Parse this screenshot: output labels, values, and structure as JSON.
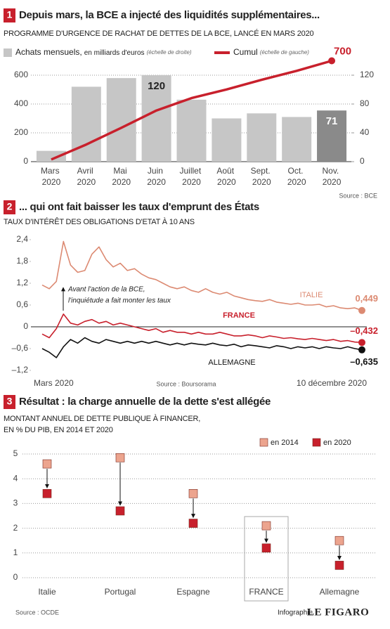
{
  "chart_data": [
    {
      "type": "bar",
      "number": "1",
      "title": "Depuis mars, la BCE a injecté des liquidités supplémentaires...",
      "subtitle": "PROGRAMME D'URGENCE DE RACHAT DE DETTES DE LA BCE, LANCÉ EN MARS 2020",
      "categories": [
        "Mars 2020",
        "Avril 2020",
        "Mai 2020",
        "Juin 2020",
        "Juillet 2020",
        "Août 2020",
        "Sept. 2020",
        "Oct. 2020",
        "Nov. 2020"
      ],
      "series": [
        {
          "name": "Achats mensuels,",
          "unit": "en milliards d'euros",
          "note": "(échelle de droite)",
          "type": "bar",
          "axis": "y2",
          "color": "#c6c6c6",
          "colors": [
            "#c6c6c6",
            "#c6c6c6",
            "#c6c6c6",
            "#c6c6c6",
            "#c6c6c6",
            "#c6c6c6",
            "#c6c6c6",
            "#c6c6c6",
            "#8a8a8a"
          ],
          "values": [
            15,
            104,
            116,
            120,
            86,
            60,
            67,
            62,
            71
          ],
          "value_labels": [
            null,
            null,
            null,
            "120",
            null,
            null,
            null,
            null,
            "71"
          ]
        },
        {
          "name": "Cumul",
          "note": "(échelle de gauche)",
          "type": "line",
          "axis": "y",
          "color": "#c8202c",
          "values": [
            15,
            119,
            235,
            355,
            441,
            501,
            568,
            630,
            700
          ],
          "value_labels": [
            null,
            null,
            null,
            null,
            null,
            null,
            null,
            null,
            "700"
          ]
        }
      ],
      "ylim": [
        0,
        600
      ],
      "yticks": [
        0,
        200,
        400,
        600
      ],
      "y2lim": [
        0,
        120
      ],
      "y2ticks": [
        0,
        40,
        80,
        120
      ],
      "grid": true,
      "source": "Source : BCE"
    },
    {
      "type": "line",
      "number": "2",
      "title": "... qui ont fait baisser les taux d'emprunt des États",
      "subtitle": "TAUX D'INTÉRÊT DES OBLIGATIONS D'ETAT À 10 ANS",
      "categories": [
        "Mars 2020",
        null,
        null,
        null,
        null,
        null,
        null,
        null,
        null,
        null,
        null,
        null,
        null,
        null,
        null,
        null,
        null,
        null,
        null,
        null,
        null,
        null,
        null,
        null,
        null,
        null,
        null,
        null,
        null,
        null,
        null,
        null,
        null,
        null,
        null,
        null,
        null,
        null,
        null,
        null,
        null,
        null,
        null,
        null,
        null,
        "10 décembre 2020"
      ],
      "series": [
        {
          "name": "ITALIE",
          "color": "#dc8a72",
          "values": [
            1.15,
            1.05,
            1.25,
            2.35,
            1.7,
            1.5,
            1.55,
            2.0,
            2.2,
            1.85,
            1.65,
            1.75,
            1.55,
            1.6,
            1.45,
            1.35,
            1.3,
            1.2,
            1.1,
            1.05,
            1.1,
            1.0,
            0.95,
            1.05,
            0.95,
            0.9,
            0.95,
            0.85,
            0.8,
            0.75,
            0.72,
            0.7,
            0.75,
            0.68,
            0.65,
            0.62,
            0.65,
            0.6,
            0.6,
            0.62,
            0.55,
            0.58,
            0.52,
            0.5,
            0.52,
            0.449
          ],
          "value_labels": [
            null,
            null,
            null,
            null,
            null,
            null,
            null,
            null,
            null,
            null,
            null,
            null,
            null,
            null,
            null,
            null,
            null,
            null,
            null,
            null,
            null,
            null,
            null,
            null,
            null,
            null,
            null,
            null,
            null,
            null,
            null,
            null,
            null,
            null,
            null,
            null,
            null,
            null,
            null,
            null,
            null,
            null,
            null,
            null,
            null,
            "0,449"
          ]
        },
        {
          "name": "FRANCE",
          "color": "#c8202c",
          "values": [
            -0.2,
            -0.3,
            -0.05,
            0.35,
            0.1,
            0.05,
            0.15,
            0.2,
            0.1,
            0.15,
            0.05,
            0.1,
            0.05,
            0,
            -0.05,
            -0.1,
            -0.05,
            -0.15,
            -0.1,
            -0.15,
            -0.15,
            -0.2,
            -0.15,
            -0.2,
            -0.2,
            -0.15,
            -0.2,
            -0.25,
            -0.25,
            -0.22,
            -0.25,
            -0.3,
            -0.25,
            -0.28,
            -0.32,
            -0.3,
            -0.33,
            -0.35,
            -0.32,
            -0.35,
            -0.38,
            -0.35,
            -0.4,
            -0.38,
            -0.42,
            -0.432
          ],
          "value_labels": [
            null,
            null,
            null,
            null,
            null,
            null,
            null,
            null,
            null,
            null,
            null,
            null,
            null,
            null,
            null,
            null,
            null,
            null,
            null,
            null,
            null,
            null,
            null,
            null,
            null,
            null,
            null,
            null,
            null,
            null,
            null,
            null,
            null,
            null,
            null,
            null,
            null,
            null,
            null,
            null,
            null,
            null,
            null,
            null,
            null,
            "–0,432"
          ]
        },
        {
          "name": "ALLEMAGNE",
          "color": "#111111",
          "values": [
            -0.6,
            -0.7,
            -0.85,
            -0.55,
            -0.35,
            -0.45,
            -0.3,
            -0.4,
            -0.45,
            -0.35,
            -0.4,
            -0.45,
            -0.4,
            -0.45,
            -0.4,
            -0.45,
            -0.4,
            -0.45,
            -0.5,
            -0.45,
            -0.5,
            -0.45,
            -0.48,
            -0.5,
            -0.45,
            -0.5,
            -0.52,
            -0.48,
            -0.55,
            -0.5,
            -0.52,
            -0.55,
            -0.58,
            -0.52,
            -0.55,
            -0.6,
            -0.55,
            -0.58,
            -0.55,
            -0.6,
            -0.55,
            -0.58,
            -0.6,
            -0.55,
            -0.6,
            -0.635
          ],
          "value_labels": [
            null,
            null,
            null,
            null,
            null,
            null,
            null,
            null,
            null,
            null,
            null,
            null,
            null,
            null,
            null,
            null,
            null,
            null,
            null,
            null,
            null,
            null,
            null,
            null,
            null,
            null,
            null,
            null,
            null,
            null,
            null,
            null,
            null,
            null,
            null,
            null,
            null,
            null,
            null,
            null,
            null,
            null,
            null,
            null,
            null,
            "–0,635"
          ]
        }
      ],
      "ylim": [
        -1.2,
        2.4
      ],
      "yticks": [
        {
          "value": 2.4,
          "label": "2,4"
        },
        {
          "value": 1.8,
          "label": "1,8"
        },
        {
          "value": 1.2,
          "label": "1,2"
        },
        {
          "value": 0.6,
          "label": "0,6"
        },
        0,
        {
          "value": -0.6,
          "label": "–0,6"
        },
        {
          "value": -1.2,
          "label": "–1,2"
        }
      ],
      "grid": false,
      "annotation": [
        "Avant l'action de la BCE,",
        "l'inquiétude a fait monter les taux"
      ],
      "source": "Source : Boursorama"
    },
    {
      "type": "dot",
      "number": "3",
      "title": "Résultat : la charge annuelle de la dette s'est allégée",
      "subtitle": [
        "MONTANT ANNUEL DE DETTE PUBLIQUE À FINANCER,",
        "EN % DU PIB, EN 2014 ET 2020"
      ],
      "categories": [
        "Italie",
        "Portugal",
        "Espagne",
        "FRANCE",
        "Allemagne"
      ],
      "highlight": 3,
      "series": [
        {
          "name": "en 2014",
          "color": "#eca48e",
          "values": [
            4.6,
            4.85,
            3.4,
            2.1,
            1.5
          ]
        },
        {
          "name": "en 2020",
          "color": "#c8202c",
          "values": [
            3.4,
            2.7,
            2.2,
            1.2,
            0.5
          ]
        }
      ],
      "ylim": [
        0,
        5
      ],
      "yticks": [
        0,
        1,
        2,
        3,
        4,
        5
      ],
      "grid": true,
      "source": "Source : OCDE"
    }
  ],
  "footer": {
    "credit": "Infographie",
    "brand": "LE FIGARO"
  }
}
